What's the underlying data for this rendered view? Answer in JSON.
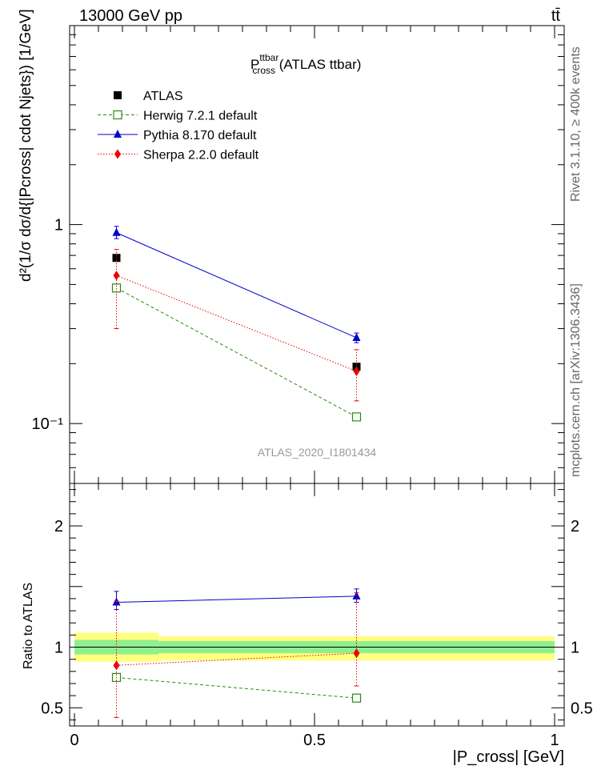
{
  "header": {
    "left": "13000 GeV pp",
    "right": "tt̄"
  },
  "plot_title": {
    "main": "P",
    "sup": "ttbar",
    "sub": "cross",
    "suffix": " (ATLAS ttbar)"
  },
  "side_labels": {
    "rivet": "Rivet 3.1.10, ≥ 400k events",
    "mcplots": "mcplots.cern.ch [arXiv:1306.3436]"
  },
  "watermark": "ATLAS_2020_I1801434",
  "ylabel_main": "d²(1/σ dσ/d{|Pcross| cdot Njets}) [1/GeV]",
  "ylabel_ratio": "Ratio to ATLAS",
  "xlabel": "|P_cross| [GeV]",
  "chart_data": [
    {
      "type": "scatter",
      "panel": "main",
      "yscale": "log",
      "x": [
        0.0875,
        0.5875
      ],
      "xlim": [
        -0.01,
        1.02
      ],
      "ylim": [
        0.05,
        10
      ],
      "yticks": [
        {
          "value": 1,
          "label": "1"
        },
        {
          "value": 0.1,
          "label": "10⁻¹"
        }
      ],
      "series": [
        {
          "name": "ATLAS",
          "color": "#000000",
          "marker": "square",
          "line": "none",
          "values": [
            0.68,
            0.193
          ]
        },
        {
          "name": "Herwig 7.2.1 default",
          "color": "#2a8a0f",
          "marker": "open-square",
          "line": "dashed",
          "values": [
            0.48,
            0.108
          ]
        },
        {
          "name": "Pythia 8.170 default",
          "color": "#0000cc",
          "marker": "triangle",
          "line": "solid",
          "values": [
            0.91,
            0.27
          ],
          "err": [
            [
              0.85,
              0.98
            ],
            [
              0.255,
              0.285
            ]
          ]
        },
        {
          "name": "Sherpa 2.2.0 default",
          "color": "#ee0000",
          "marker": "diamond",
          "line": "dotted",
          "values": [
            0.555,
            0.183
          ],
          "err": [
            [
              0.3,
              0.75
            ],
            [
              0.13,
              0.235
            ]
          ]
        }
      ]
    },
    {
      "type": "scatter",
      "panel": "ratio",
      "x": [
        0.0875,
        0.5875
      ],
      "xlim": [
        -0.01,
        1.02
      ],
      "ylim": [
        0.35,
        2.35
      ],
      "yticks": [
        0.5,
        1,
        2
      ],
      "xticks": [
        0,
        0.5,
        1
      ],
      "bands": {
        "yellow": [
          {
            "x0": 0.0,
            "x1": 0.175,
            "lo": 0.88,
            "hi": 1.12
          },
          {
            "x0": 0.175,
            "x1": 1.0,
            "lo": 0.89,
            "hi": 1.09
          }
        ],
        "green": [
          {
            "x0": 0.0,
            "x1": 0.175,
            "lo": 0.94,
            "hi": 1.06
          },
          {
            "x0": 0.175,
            "x1": 1.0,
            "lo": 0.95,
            "hi": 1.05
          }
        ]
      },
      "series": [
        {
          "name": "Herwig 7.2.1 default",
          "color": "#2a8a0f",
          "marker": "open-square",
          "line": "dashed",
          "values": [
            0.75,
            0.58
          ]
        },
        {
          "name": "Pythia 8.170 default",
          "color": "#0000cc",
          "marker": "triangle",
          "line": "solid",
          "values": [
            1.37,
            1.42
          ],
          "err": [
            [
              1.31,
              1.46
            ],
            [
              1.37,
              1.48
            ]
          ]
        },
        {
          "name": "Sherpa 2.2.0 default",
          "color": "#ee0000",
          "marker": "diamond",
          "line": "dotted",
          "values": [
            0.85,
            0.95
          ],
          "err": [
            [
              0.42,
              1.38
            ],
            [
              0.68,
              1.45
            ]
          ]
        }
      ]
    }
  ]
}
